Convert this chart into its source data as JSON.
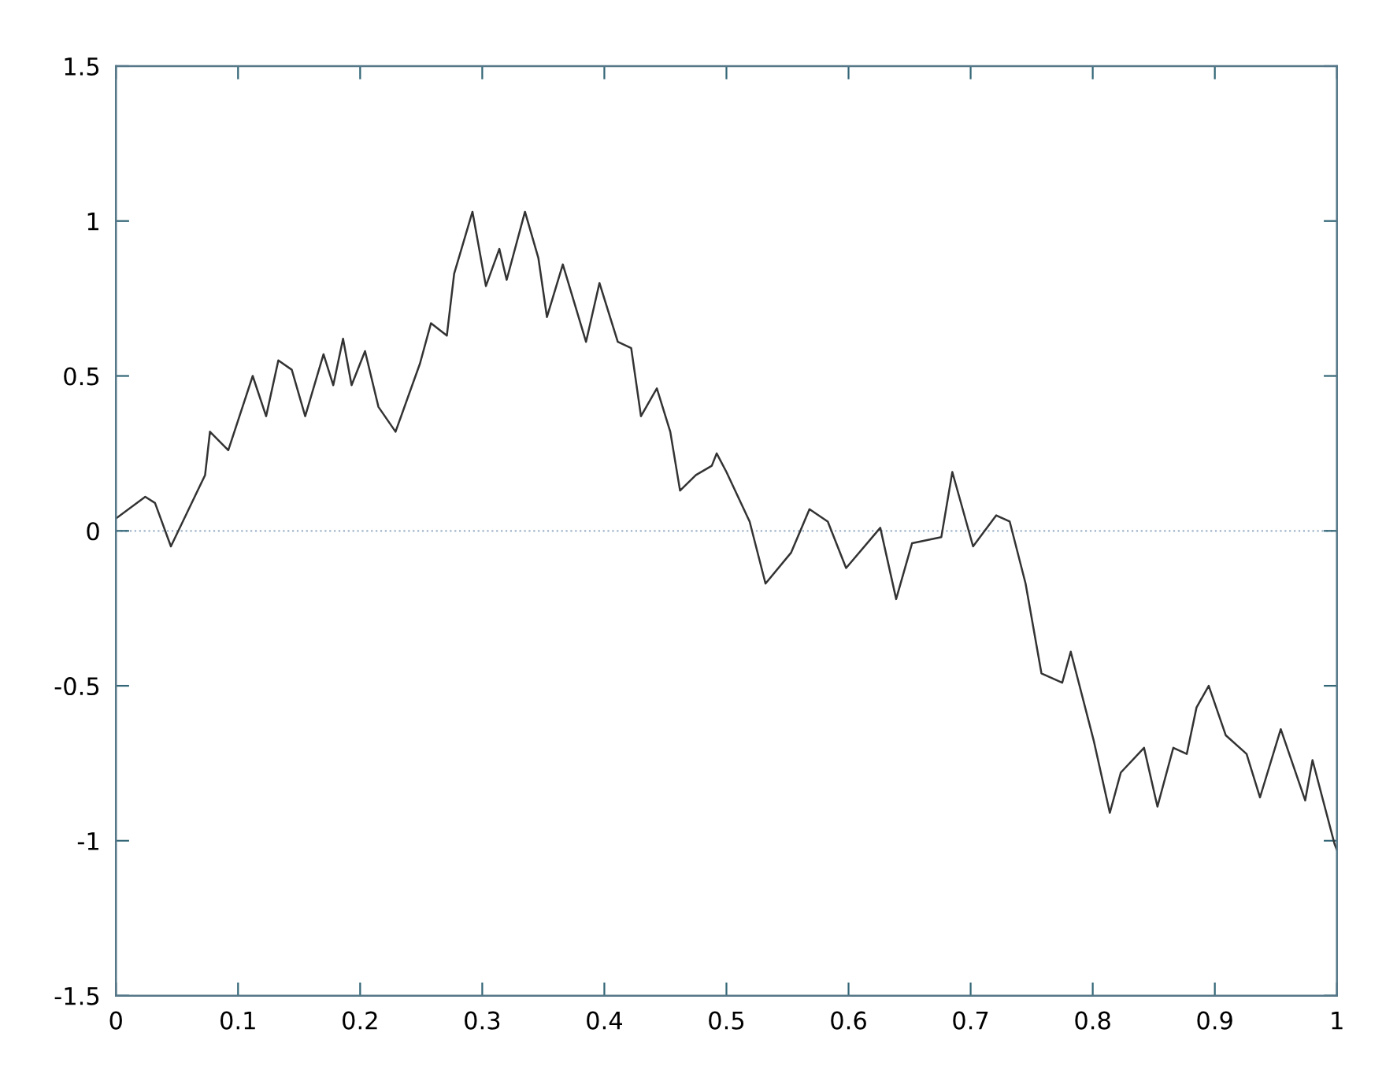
{
  "chart_data": {
    "type": "line",
    "xlim": [
      0,
      1
    ],
    "ylim": [
      -1.5,
      1.5
    ],
    "xticks": [
      0,
      0.1,
      0.2,
      0.3,
      0.4,
      0.5,
      0.6,
      0.7,
      0.8,
      0.9,
      1
    ],
    "yticks": [
      -1.5,
      -1,
      -0.5,
      0,
      0.5,
      1,
      1.5
    ],
    "grid": false,
    "marker": "none",
    "line_style": "solid",
    "ref_lines": [
      {
        "axis": "y",
        "value": 0,
        "color": "#9fb3c8",
        "line_style": "dotted"
      }
    ],
    "series": [
      {
        "color": "#333333",
        "x": [
          0,
          0.024,
          0.032,
          0.045,
          0.073,
          0.077,
          0.092,
          0.112,
          0.123,
          0.133,
          0.144,
          0.155,
          0.17,
          0.178,
          0.186,
          0.193,
          0.204,
          0.215,
          0.229,
          0.249,
          0.258,
          0.271,
          0.277,
          0.292,
          0.303,
          0.314,
          0.32,
          0.335,
          0.346,
          0.353,
          0.366,
          0.385,
          0.396,
          0.411,
          0.422,
          0.43,
          0.443,
          0.454,
          0.462,
          0.475,
          0.488,
          0.492,
          0.5,
          0.519,
          0.532,
          0.553,
          0.568,
          0.583,
          0.598,
          0.626,
          0.639,
          0.652,
          0.676,
          0.685,
          0.702,
          0.721,
          0.732,
          0.745,
          0.758,
          0.775,
          0.782,
          0.801,
          0.814,
          0.823,
          0.842,
          0.853,
          0.866,
          0.877,
          0.885,
          0.895,
          0.909,
          0.926,
          0.937,
          0.954,
          0.974,
          0.98,
          0.998,
          1
        ],
        "values": [
          0.04,
          0.11,
          0.09,
          -0.05,
          0.18,
          0.32,
          0.26,
          0.5,
          0.37,
          0.55,
          0.52,
          0.37,
          0.57,
          0.47,
          0.62,
          0.47,
          0.58,
          0.4,
          0.32,
          0.54,
          0.67,
          0.63,
          0.83,
          1.03,
          0.79,
          0.91,
          0.81,
          1.03,
          0.88,
          0.69,
          0.86,
          0.61,
          0.8,
          0.61,
          0.59,
          0.37,
          0.46,
          0.32,
          0.13,
          0.18,
          0.21,
          0.25,
          0.19,
          0.03,
          -0.17,
          -0.07,
          0.07,
          0.03,
          -0.12,
          0.01,
          -0.22,
          -0.04,
          -0.02,
          0.19,
          -0.05,
          0.05,
          0.03,
          -0.17,
          -0.46,
          -0.49,
          -0.39,
          -0.68,
          -0.91,
          -0.78,
          -0.7,
          -0.89,
          -0.7,
          -0.72,
          -0.57,
          -0.5,
          -0.66,
          -0.72,
          -0.86,
          -0.64,
          -0.87,
          -0.74,
          -1.01,
          -1.03
        ]
      }
    ]
  }
}
